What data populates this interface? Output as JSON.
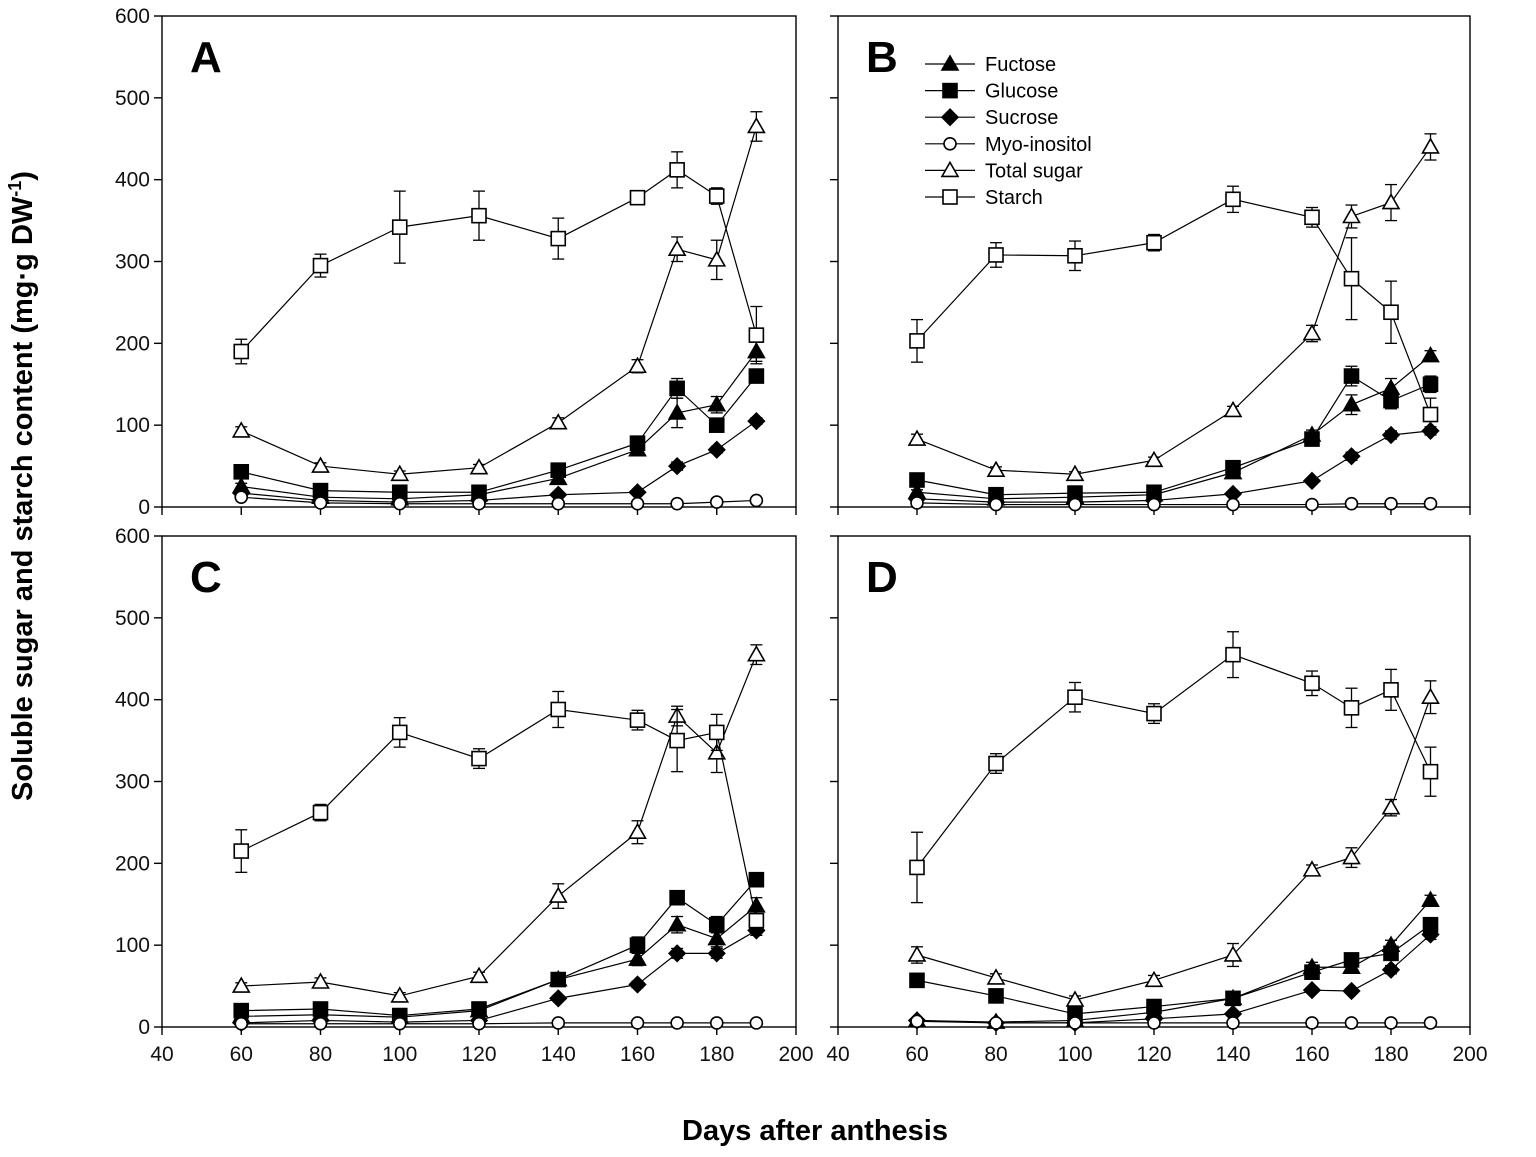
{
  "chart_data": {
    "type": "line",
    "ylabel": "Soluble sugar and starch content (mg·g DW",
    "ylabel_sup": "-1",
    "ylabel_close": ")",
    "xlabel": "Days after anthesis",
    "xlim": [
      40,
      200
    ],
    "ylim": [
      0,
      600
    ],
    "xticks": [
      "40",
      "60",
      "80",
      "100",
      "120",
      "140",
      "160",
      "180",
      "200"
    ],
    "yticks": [
      "0",
      "100",
      "200",
      "300",
      "400",
      "500",
      "600"
    ],
    "x": [
      60,
      80,
      100,
      120,
      140,
      160,
      170,
      180,
      190
    ],
    "legend": {
      "placement": "panel B, top-left",
      "entries": [
        "Fuctose",
        "Glucose",
        "Sucrose",
        "Myo-inositol",
        "Total sugar",
        "Starch"
      ]
    },
    "panels": [
      {
        "label": "A",
        "series": [
          {
            "name": "Fuctose",
            "values": [
              25,
              12,
              10,
              15,
              35,
              70,
              115,
              125,
              190
            ],
            "errors": [
              4,
              2,
              2,
              3,
              4,
              6,
              18,
              10,
              12
            ]
          },
          {
            "name": "Glucose",
            "values": [
              43,
              20,
              18,
              18,
              45,
              78,
              145,
              100,
              160
            ],
            "errors": [
              4,
              3,
              3,
              3,
              4,
              6,
              12,
              5,
              8
            ]
          },
          {
            "name": "Sucrose",
            "values": [
              17,
              8,
              6,
              8,
              15,
              18,
              50,
              70,
              105
            ],
            "errors": [
              2,
              1,
              1,
              1,
              2,
              2,
              5,
              4,
              4
            ]
          },
          {
            "name": "Myo-inositol",
            "values": [
              12,
              5,
              4,
              4,
              4,
              4,
              4,
              6,
              8
            ],
            "errors": [
              1,
              1,
              1,
              1,
              1,
              1,
              1,
              1,
              1
            ]
          },
          {
            "name": "Total sugar",
            "values": [
              93,
              50,
              40,
              48,
              103,
              172,
              315,
              302,
              465
            ],
            "errors": [
              5,
              4,
              4,
              4,
              6,
              8,
              15,
              24,
              18
            ]
          },
          {
            "name": "Starch",
            "values": [
              190,
              295,
              342,
              356,
              328,
              378,
              412,
              380,
              210
            ],
            "errors": [
              15,
              14,
              44,
              30,
              25,
              8,
              22,
              10,
              35
            ]
          }
        ]
      },
      {
        "label": "B",
        "series": [
          {
            "name": "Fuctose",
            "values": [
              18,
              10,
              12,
              15,
              42,
              88,
              125,
              145,
              185
            ],
            "errors": [
              3,
              2,
              2,
              2,
              4,
              6,
              12,
              12,
              6
            ]
          },
          {
            "name": "Glucose",
            "values": [
              33,
              15,
              17,
              18,
              48,
              83,
              160,
              130,
              150
            ],
            "errors": [
              5,
              2,
              2,
              2,
              4,
              5,
              12,
              10,
              10
            ]
          },
          {
            "name": "Sucrose",
            "values": [
              10,
              6,
              6,
              8,
              16,
              32,
              62,
              88,
              93
            ],
            "errors": [
              2,
              1,
              1,
              1,
              2,
              3,
              5,
              5,
              5
            ]
          },
          {
            "name": "Myo-inositol",
            "values": [
              5,
              3,
              3,
              3,
              3,
              3,
              4,
              4,
              4
            ],
            "errors": [
              1,
              1,
              1,
              1,
              1,
              1,
              1,
              1,
              1
            ]
          },
          {
            "name": "Total sugar",
            "values": [
              83,
              45,
              40,
              57,
              118,
              212,
              355,
              372,
              440
            ],
            "errors": [
              6,
              4,
              3,
              4,
              5,
              10,
              14,
              22,
              16
            ]
          },
          {
            "name": "Starch",
            "values": [
              203,
              308,
              307,
              323,
              376,
              354,
              279,
              238,
              113
            ],
            "errors": [
              26,
              15,
              18,
              10,
              16,
              12,
              50,
              38,
              20
            ]
          }
        ]
      },
      {
        "label": "C",
        "series": [
          {
            "name": "Fuctose",
            "values": [
              13,
              15,
              12,
              20,
              58,
              83,
              125,
              108,
              148
            ],
            "errors": [
              2,
              2,
              2,
              2,
              4,
              8,
              10,
              10,
              10
            ]
          },
          {
            "name": "Glucose",
            "values": [
              20,
              22,
              14,
              22,
              58,
              100,
              158,
              125,
              180
            ],
            "errors": [
              3,
              3,
              2,
              3,
              4,
              10,
              8,
              10,
              6
            ]
          },
          {
            "name": "Sucrose",
            "values": [
              5,
              8,
              6,
              8,
              35,
              52,
              90,
              90,
              118
            ],
            "errors": [
              1,
              1,
              1,
              1,
              3,
              4,
              6,
              6,
              6
            ]
          },
          {
            "name": "Myo-inositol",
            "values": [
              4,
              4,
              4,
              4,
              5,
              5,
              5,
              5,
              5
            ],
            "errors": [
              1,
              1,
              1,
              1,
              1,
              1,
              1,
              1,
              1
            ]
          },
          {
            "name": "Total sugar",
            "values": [
              50,
              55,
              38,
              62,
              160,
              238,
              380,
              335,
              455
            ],
            "errors": [
              4,
              5,
              4,
              5,
              15,
              14,
              12,
              24,
              12
            ]
          },
          {
            "name": "Starch",
            "values": [
              215,
              262,
              360,
              328,
              388,
              375,
              350,
              360,
              130
            ],
            "errors": [
              26,
              10,
              18,
              12,
              22,
              12,
              38,
              22,
              15
            ]
          }
        ]
      },
      {
        "label": "D",
        "series": [
          {
            "name": "Fuctose",
            "values": [
              8,
              6,
              8,
              18,
              35,
              73,
              73,
              100,
              155
            ],
            "errors": [
              1,
              1,
              1,
              2,
              3,
              6,
              6,
              6,
              6
            ]
          },
          {
            "name": "Glucose",
            "values": [
              57,
              38,
              16,
              25,
              35,
              67,
              82,
              90,
              125
            ],
            "errors": [
              5,
              4,
              2,
              3,
              4,
              5,
              6,
              6,
              8
            ]
          },
          {
            "name": "Sucrose",
            "values": [
              8,
              5,
              5,
              10,
              16,
              45,
              44,
              70,
              113
            ],
            "errors": [
              1,
              1,
              1,
              1,
              2,
              3,
              3,
              5,
              6
            ]
          },
          {
            "name": "Myo-inositol",
            "values": [
              7,
              5,
              5,
              5,
              5,
              5,
              5,
              5,
              5
            ],
            "errors": [
              1,
              1,
              1,
              1,
              1,
              1,
              1,
              1,
              1
            ]
          },
          {
            "name": "Total sugar",
            "values": [
              88,
              60,
              33,
              57,
              88,
              192,
              207,
              268,
              403
            ],
            "errors": [
              10,
              5,
              5,
              6,
              14,
              6,
              12,
              10,
              20
            ]
          },
          {
            "name": "Starch",
            "values": [
              195,
              322,
              403,
              383,
              455,
              420,
              390,
              412,
              312
            ],
            "errors": [
              43,
              12,
              18,
              12,
              28,
              15,
              24,
              25,
              30
            ]
          }
        ]
      }
    ]
  }
}
